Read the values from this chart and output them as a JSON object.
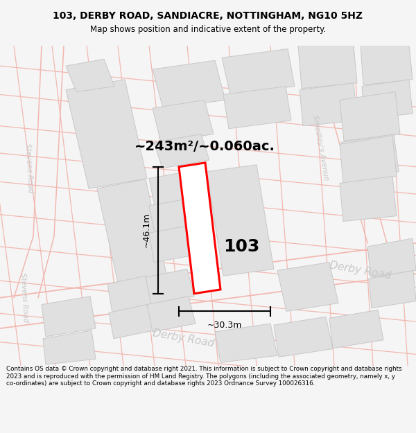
{
  "title_line1": "103, DERBY ROAD, SANDIACRE, NOTTINGHAM, NG10 5HZ",
  "title_line2": "Map shows position and indicative extent of the property.",
  "area_label": "~243m²/~0.060ac.",
  "number_label": "103",
  "dim_width_label": "~30.3m",
  "dim_height_label": "~46.1m",
  "bg_color": "#f5f5f5",
  "map_bg": "#ffffff",
  "footer_text": "Contains OS data © Crown copyright and database right 2021. This information is subject to Crown copyright and database rights 2023 and is reproduced with the permission of HM Land Registry. The polygons (including the associated geometry, namely x, y co-ordinates) are subject to Crown copyright and database rights 2023 Ordnance Survey 100026316.",
  "road_color": "#f2b8b0",
  "building_fill": "#e0e0e0",
  "building_edge": "#c8c8c8",
  "highlight_color": "#ff0000",
  "label_color": "#c8c8c8",
  "dim_color": "#000000",
  "title_fontsize": 10,
  "subtitle_fontsize": 8.5,
  "area_fontsize": 14,
  "number_fontsize": 18,
  "dim_fontsize": 9,
  "road_label_fontsize": 9.5
}
